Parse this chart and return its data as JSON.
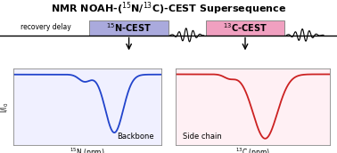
{
  "title": "NMR NOAH-($^{15}$N/$^{13}$C)-CEST Supersequence",
  "box1_label": "$^{15}$N-CEST",
  "box2_label": "$^{13}$C-CEST",
  "box1_color": "#aaaadd",
  "box2_color": "#f0a0c0",
  "recovery_delay_text": "recovery delay",
  "backbone_text": "Backbone",
  "sidechain_text": "Side chain",
  "xlabel1": "$^{15}$N (ppm)",
  "xlabel2": "$^{13}$C (ppm)",
  "ylabel": "I/I$_0$",
  "line1_color": "#2244cc",
  "line2_color": "#cc2222",
  "bg_color": "#ffffff"
}
